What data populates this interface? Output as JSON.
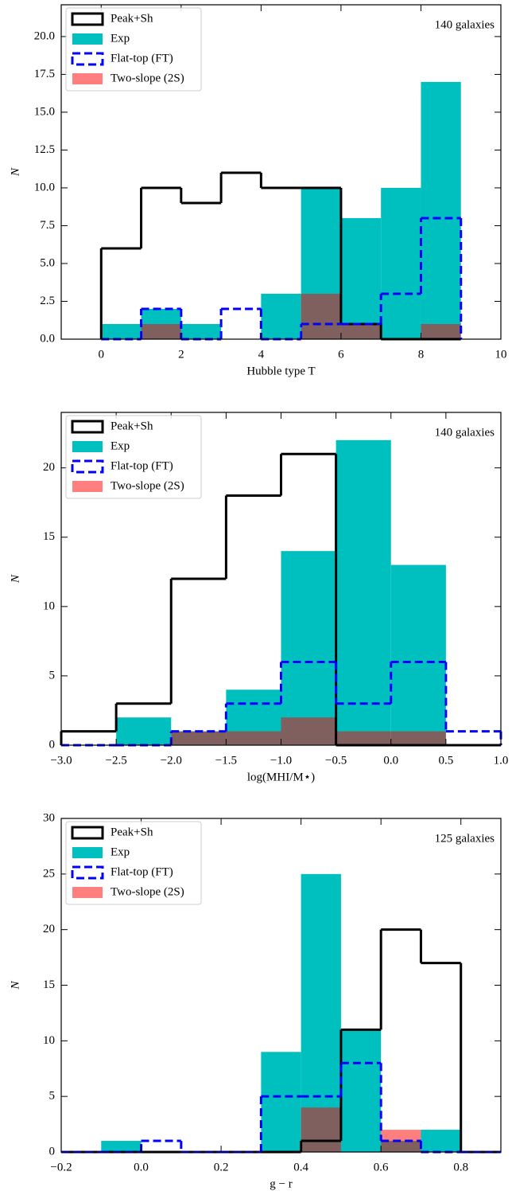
{
  "chart_data": [
    {
      "type": "histogram",
      "xlabel": "Hubble type T",
      "ylabel": "N",
      "annotation": "140 galaxies",
      "legend": "upper left",
      "bins": [
        0,
        1,
        2,
        3,
        4,
        5,
        6,
        7,
        8,
        9
      ],
      "xlim": [
        -1,
        10
      ],
      "xticks": [
        0,
        2,
        4,
        6,
        8,
        10
      ],
      "ylim": [
        0,
        22.1
      ],
      "yticks": [
        {
          "value": 0,
          "label": "0.0"
        },
        {
          "value": 2.5,
          "label": "2.5"
        },
        {
          "value": 5,
          "label": "5.0"
        },
        {
          "value": 7.5,
          "label": "7.5"
        },
        {
          "value": 10,
          "label": "10.0"
        },
        {
          "value": 12.5,
          "label": "12.5"
        },
        {
          "value": 15,
          "label": "15.0"
        },
        {
          "value": 17.5,
          "label": "17.5"
        },
        {
          "value": 20,
          "label": "20.0"
        }
      ],
      "series": [
        {
          "name": "Peak+Sh",
          "color": "#000000",
          "histtype": "step",
          "values": [
            6,
            10,
            9,
            11,
            10,
            10,
            1,
            0,
            0
          ]
        },
        {
          "name": "Exp",
          "color": "#00bfbf",
          "histtype": "bar",
          "values": [
            1,
            2,
            1,
            0,
            3,
            10,
            8,
            10,
            17
          ]
        },
        {
          "name": "Flat-top (FT)",
          "color": "#0000ff",
          "histtype": "step",
          "dashed": true,
          "values": [
            0,
            2,
            0,
            2,
            0,
            1,
            1,
            3,
            8
          ]
        },
        {
          "name": "Two-slope (2S)",
          "color": "#ff0000",
          "alpha": 0.5,
          "histtype": "bar",
          "values": [
            0,
            1,
            0,
            0,
            0,
            3,
            1,
            0,
            1
          ]
        }
      ]
    },
    {
      "type": "histogram",
      "xlabel": "log(MHI/M⋆)",
      "ylabel": "N",
      "annotation": "140 galaxies",
      "legend": "upper left",
      "bins": [
        -3,
        -2.5,
        -2,
        -1.5,
        -1,
        -0.5,
        0,
        0.5,
        1
      ],
      "xlim": [
        -3,
        1
      ],
      "xticks": [
        {
          "value": -3,
          "label": "−3.0"
        },
        {
          "value": -2.5,
          "label": "−2.5"
        },
        {
          "value": -2,
          "label": "−2.0"
        },
        {
          "value": -1.5,
          "label": "−1.5"
        },
        {
          "value": -1,
          "label": "−1.0"
        },
        {
          "value": -0.5,
          "label": "−0.5"
        },
        {
          "value": 0,
          "label": "0.0"
        },
        {
          "value": 0.5,
          "label": "0.5"
        },
        {
          "value": 1,
          "label": "1.0"
        }
      ],
      "ylim": [
        0,
        24
      ],
      "yticks": [
        0,
        5,
        10,
        15,
        20
      ],
      "series": [
        {
          "name": "Peak+Sh",
          "color": "#000000",
          "histtype": "step",
          "values": [
            1,
            3,
            12,
            18,
            21,
            0,
            0,
            0
          ]
        },
        {
          "name": "Exp",
          "color": "#00bfbf",
          "histtype": "bar",
          "values": [
            0,
            2,
            1,
            4,
            14,
            22,
            13,
            0
          ]
        },
        {
          "name": "Flat-top (FT)",
          "color": "#0000ff",
          "histtype": "step",
          "dashed": true,
          "values": [
            0,
            0,
            1,
            3,
            6,
            3,
            6,
            1
          ]
        },
        {
          "name": "Two-slope (2S)",
          "color": "#ff0000",
          "alpha": 0.5,
          "histtype": "bar",
          "values": [
            0,
            0,
            1,
            1,
            2,
            1,
            1,
            0
          ]
        }
      ]
    },
    {
      "type": "histogram",
      "xlabel": "g − r",
      "ylabel": "N",
      "annotation": "125 galaxies",
      "legend": "upper left",
      "bins": [
        -0.2,
        -0.1,
        0,
        0.1,
        0.2,
        0.3,
        0.4,
        0.5,
        0.6,
        0.7,
        0.8,
        0.9
      ],
      "xlim": [
        -0.2,
        0.9
      ],
      "xticks": [
        {
          "value": -0.2,
          "label": "−0.2"
        },
        {
          "value": 0,
          "label": "0.0"
        },
        {
          "value": 0.2,
          "label": "0.2"
        },
        {
          "value": 0.4,
          "label": "0.4"
        },
        {
          "value": 0.6,
          "label": "0.6"
        },
        {
          "value": 0.8,
          "label": "0.8"
        }
      ],
      "ylim": [
        0,
        30
      ],
      "yticks": [
        0,
        5,
        10,
        15,
        20,
        25,
        30
      ],
      "series": [
        {
          "name": "Peak+Sh",
          "color": "#000000",
          "histtype": "step",
          "values": [
            0,
            0,
            0,
            0,
            0,
            0,
            1,
            11,
            20,
            17,
            0
          ]
        },
        {
          "name": "Exp",
          "color": "#00bfbf",
          "histtype": "bar",
          "values": [
            0,
            1,
            0,
            0,
            0,
            9,
            25,
            11,
            1,
            2,
            0
          ]
        },
        {
          "name": "Flat-top (FT)",
          "color": "#0000ff",
          "histtype": "step",
          "dashed": true,
          "values": [
            0,
            0,
            1,
            0,
            0,
            5,
            5,
            8,
            1,
            0,
            0
          ]
        },
        {
          "name": "Two-slope (2S)",
          "color": "#ff0000",
          "alpha": 0.5,
          "histtype": "bar",
          "values": [
            0,
            0,
            0,
            0,
            0,
            0,
            4,
            0,
            2,
            0,
            0
          ]
        }
      ]
    }
  ]
}
